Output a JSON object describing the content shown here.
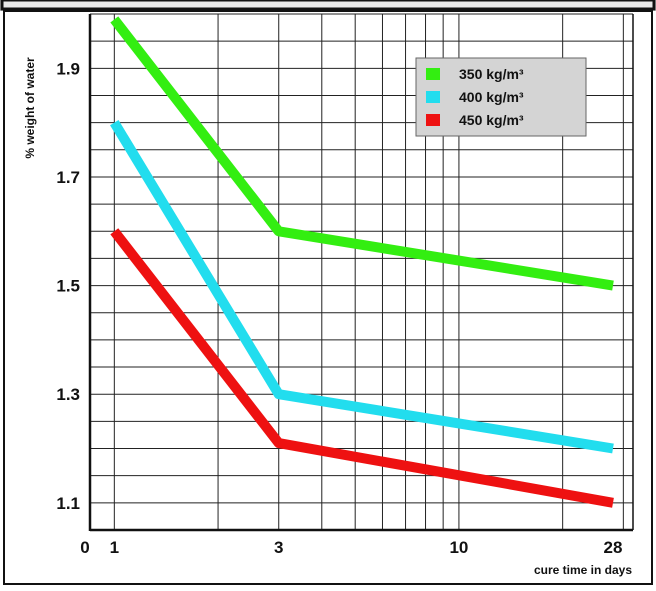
{
  "chart_data": {
    "type": "line",
    "title": "",
    "xlabel": "cure time in days",
    "ylabel": "% weight of water",
    "x_scale": "log",
    "xlim": [
      0.85,
      32
    ],
    "ylim": [
      1.05,
      2.0
    ],
    "x_tick_labels": [
      "0",
      "1",
      "3",
      "10",
      "28"
    ],
    "y_ticks": [
      1.1,
      1.3,
      1.5,
      1.7,
      1.9
    ],
    "y_tick_labels": [
      "1.1",
      "1.3",
      "1.5",
      "1.7",
      "1.9"
    ],
    "grid": true,
    "legend_position": "top-right",
    "series": [
      {
        "name": "350 kg/m³",
        "color": "#33ee11",
        "points": [
          [
            1,
            1.99
          ],
          [
            3,
            1.6
          ],
          [
            28,
            1.5
          ]
        ]
      },
      {
        "name": "400 kg/m³",
        "color": "#22ddee",
        "points": [
          [
            1,
            1.8
          ],
          [
            3,
            1.3
          ],
          [
            28,
            1.2
          ]
        ]
      },
      {
        "name": "450 kg/m³",
        "color": "#ee1111",
        "points": [
          [
            1,
            1.6
          ],
          [
            3,
            1.21
          ],
          [
            28,
            1.1
          ]
        ]
      }
    ]
  }
}
